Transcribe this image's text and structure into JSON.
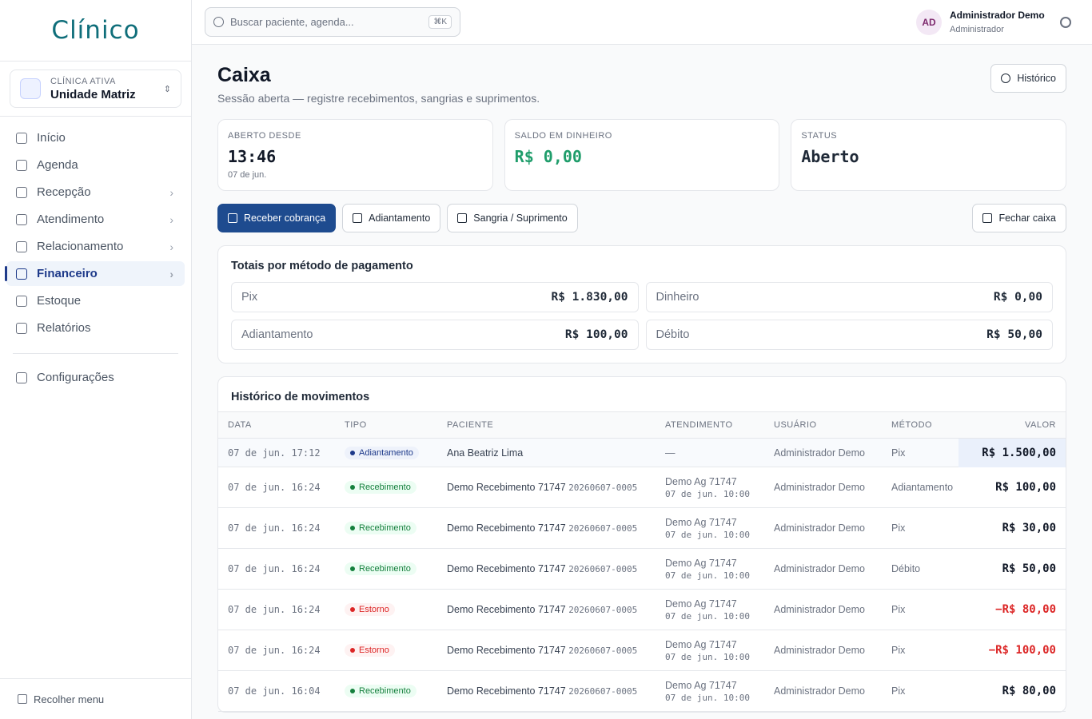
{
  "sidebar": {
    "logo": "Clínico",
    "clinic_label": "CLÍNICA ATIVA",
    "clinic_name": "Unidade Matriz",
    "nav": [
      "Início",
      "Agenda",
      "Recepção",
      "Atendimento",
      "Relacionamento",
      "Financeiro",
      "Estoque",
      "Relatórios"
    ],
    "settings": "Configurações",
    "collapse": "Recolher menu"
  },
  "topbar": {
    "search_placeholder": "Buscar paciente, agenda...",
    "shortcut": "⌘K",
    "avatar": "AD",
    "user_name": "Administrador Demo",
    "user_role": "Administrador"
  },
  "header": {
    "title": "Caixa",
    "subtitle": "Sessão aberta — registre recebimentos, sangrias e suprimentos.",
    "history_button": "Histórico"
  },
  "stats": [
    {
      "label": "ABERTO DESDE",
      "value": "13:46",
      "note": "07 de jun."
    },
    {
      "label": "SALDO EM DINHEIRO",
      "value": "R$ 0,00"
    },
    {
      "label": "STATUS",
      "value": "Aberto"
    }
  ],
  "actions": [
    "Receber cobrança",
    "Adiantamento",
    "Sangria / Suprimento"
  ],
  "close_button": "Fechar caixa",
  "totals": {
    "title": "Totais por método de pagamento",
    "items": [
      {
        "method": "Pix",
        "amount": "R$ 1.830,00"
      },
      {
        "method": "Dinheiro",
        "amount": "R$ 0,00"
      },
      {
        "method": "Adiantamento",
        "amount": "R$ 100,00"
      },
      {
        "method": "Débito",
        "amount": "R$ 50,00"
      }
    ]
  },
  "history": {
    "title": "Histórico de movimentos",
    "columns": [
      "DATA",
      "TIPO",
      "PACIENTE",
      "ATENDIMENTO",
      "USUÁRIO",
      "MÉTODO",
      "VALOR"
    ],
    "rows": [
      {
        "date": "07 de jun. 17:12",
        "type": "Adiantamento",
        "patient": "Ana Beatriz Lima",
        "appointment": "—",
        "user": "Administrador Demo",
        "method": "Pix",
        "amount": "R$ 1.500,00"
      },
      {
        "date": "07 de jun. 16:24",
        "type": "Recebimento",
        "patient": "Demo Recebimento 71747",
        "code": "20260607-0005",
        "appointment": "Demo Ag 71747",
        "appointment_time": "07 de jun. 10:00",
        "user": "Administrador Demo",
        "method": "Adiantamento",
        "amount": "R$ 100,00"
      },
      {
        "date": "07 de jun. 16:24",
        "type": "Recebimento",
        "patient": "Demo Recebimento 71747",
        "code": "20260607-0005",
        "appointment": "Demo Ag 71747",
        "appointment_time": "07 de jun. 10:00",
        "user": "Administrador Demo",
        "method": "Pix",
        "amount": "R$ 30,00"
      },
      {
        "date": "07 de jun. 16:24",
        "type": "Recebimento",
        "patient": "Demo Recebimento 71747",
        "code": "20260607-0005",
        "appointment": "Demo Ag 71747",
        "appointment_time": "07 de jun. 10:00",
        "user": "Administrador Demo",
        "method": "Débito",
        "amount": "R$ 50,00"
      },
      {
        "date": "07 de jun. 16:24",
        "type": "Estorno",
        "patient": "Demo Recebimento 71747",
        "code": "20260607-0005",
        "appointment": "Demo Ag 71747",
        "appointment_time": "07 de jun. 10:00",
        "user": "Administrador Demo",
        "method": "Pix",
        "amount": "−R$ 80,00"
      },
      {
        "date": "07 de jun. 16:24",
        "type": "Estorno",
        "patient": "Demo Recebimento 71747",
        "code": "20260607-0005",
        "appointment": "Demo Ag 71747",
        "appointment_time": "07 de jun. 10:00",
        "user": "Administrador Demo",
        "method": "Pix",
        "amount": "−R$ 100,00"
      },
      {
        "date": "07 de jun. 16:04",
        "type": "Recebimento",
        "patient": "Demo Recebimento 71747",
        "code": "20260607-0005",
        "appointment": "Demo Ag 71747",
        "appointment_time": "07 de jun. 10:00",
        "user": "Administrador Demo",
        "method": "Pix",
        "amount": "R$ 80,00"
      }
    ]
  }
}
